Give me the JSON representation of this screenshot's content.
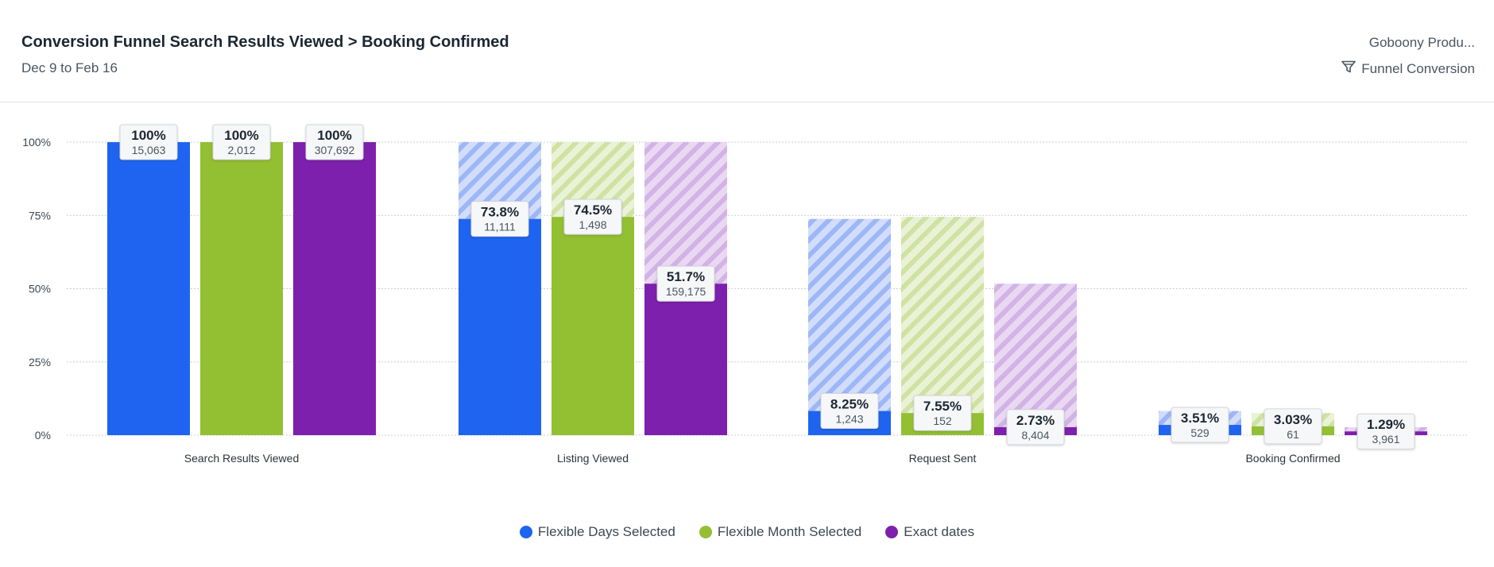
{
  "header": {
    "title": "Conversion Funnel Search Results Viewed > Booking Confirmed",
    "date_range": "Dec 9 to Feb 16",
    "project": "Goboony Produ...",
    "chart_type": "Funnel Conversion"
  },
  "chart_data": {
    "type": "bar",
    "subtype": "funnel",
    "title": "Conversion Funnel Search Results Viewed > Booking Confirmed",
    "ylabel": "",
    "xlabel": "",
    "ylim": [
      0,
      100
    ],
    "yticks": [
      "0%",
      "25%",
      "50%",
      "75%",
      "100%"
    ],
    "grid": true,
    "legend_position": "bottom-center",
    "categories": [
      "Search Results Viewed",
      "Listing Viewed",
      "Request Sent",
      "Booking Confirmed"
    ],
    "series": [
      {
        "name": "Flexible Days Selected",
        "color": "#1f64f0",
        "percent": [
          100,
          73.8,
          8.25,
          3.51
        ],
        "percent_labels": [
          "100%",
          "73.8%",
          "8.25%",
          "3.51%"
        ],
        "counts": [
          "15,063",
          "11,111",
          "1,243",
          "529"
        ]
      },
      {
        "name": "Flexible Month Selected",
        "color": "#93bf33",
        "percent": [
          100,
          74.5,
          7.55,
          3.03
        ],
        "percent_labels": [
          "100%",
          "74.5%",
          "7.55%",
          "3.03%"
        ],
        "counts": [
          "2,012",
          "1,498",
          "152",
          "61"
        ]
      },
      {
        "name": "Exact dates",
        "color": "#7d20ad",
        "percent": [
          100,
          51.7,
          2.73,
          1.29
        ],
        "percent_labels": [
          "100%",
          "51.7%",
          "2.73%",
          "1.29%"
        ],
        "counts": [
          "307,692",
          "159,175",
          "8,404",
          "3,961"
        ]
      }
    ]
  },
  "legend": {
    "items": [
      {
        "label": "Flexible Days Selected",
        "color": "#1f64f0"
      },
      {
        "label": "Flexible Month Selected",
        "color": "#93bf33"
      },
      {
        "label": "Exact dates",
        "color": "#7d20ad"
      }
    ]
  },
  "icons": {
    "chart_type_icon": "funnel-icon"
  }
}
